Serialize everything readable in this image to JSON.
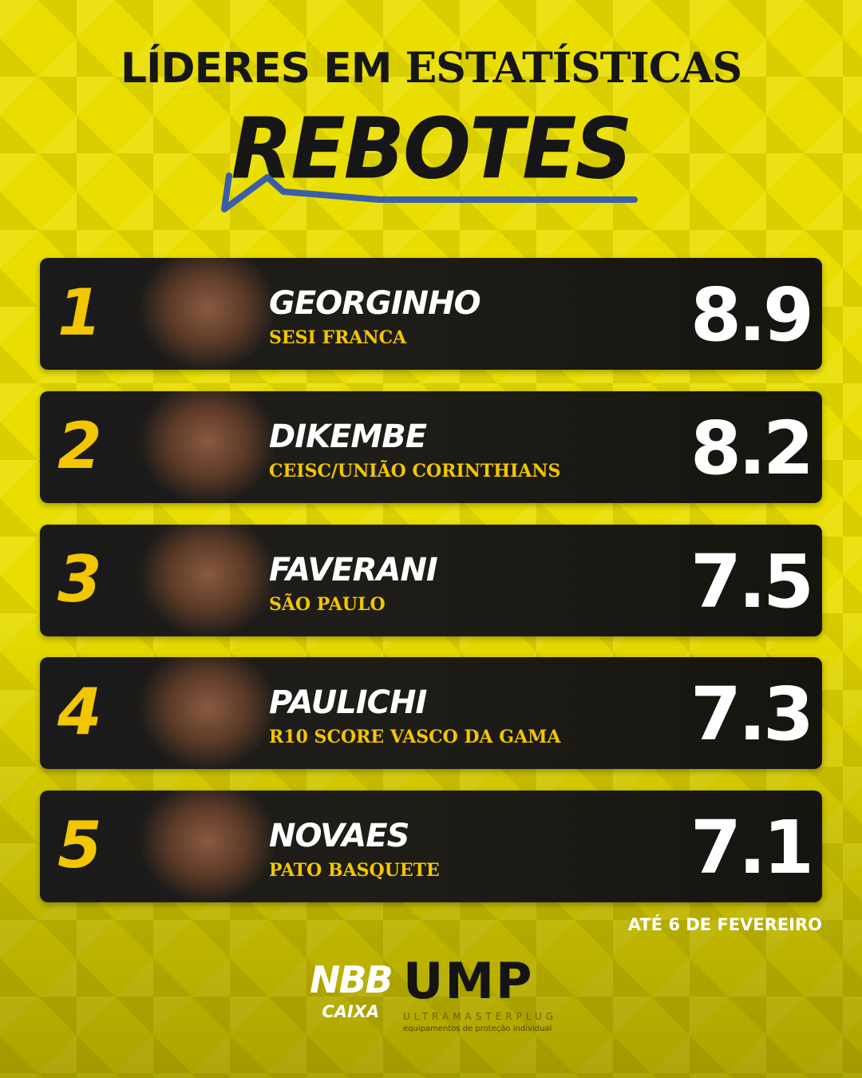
{
  "header": {
    "title_part1": "LÍDERES EM",
    "title_part2": "ESTATÍSTICAS",
    "stat": "REBOTES"
  },
  "players": [
    {
      "rank": "1",
      "name": "GEORGINHO",
      "team": "SESI FRANCA",
      "value": "8.9"
    },
    {
      "rank": "2",
      "name": "DIKEMBE",
      "team": "CEISC/UNIÃO CORINTHIANS",
      "value": "8.2"
    },
    {
      "rank": "3",
      "name": "FAVERANI",
      "team": "SÃO PAULO",
      "value": "7.5"
    },
    {
      "rank": "4",
      "name": "PAULICHI",
      "team": "R10 SCORE VASCO DA GAMA",
      "value": "7.3"
    },
    {
      "rank": "5",
      "name": "NOVAES",
      "team": "PATO BASQUETE",
      "value": "7.1"
    }
  ],
  "footer": {
    "date_note": "ATÉ 6 DE FEVEREIRO",
    "nbb_logo": {
      "line1": "NBB",
      "line2": "CAIXA"
    },
    "ump_logo": {
      "mark": "UMP",
      "name": "ULTRAMASTERPLUG",
      "tagline": "equipamentos de proteção individual"
    }
  },
  "colors": {
    "background": "#e9de00",
    "card": "#1a1a1a",
    "accent": "#f2c600",
    "underline": "#3a5fa8"
  }
}
